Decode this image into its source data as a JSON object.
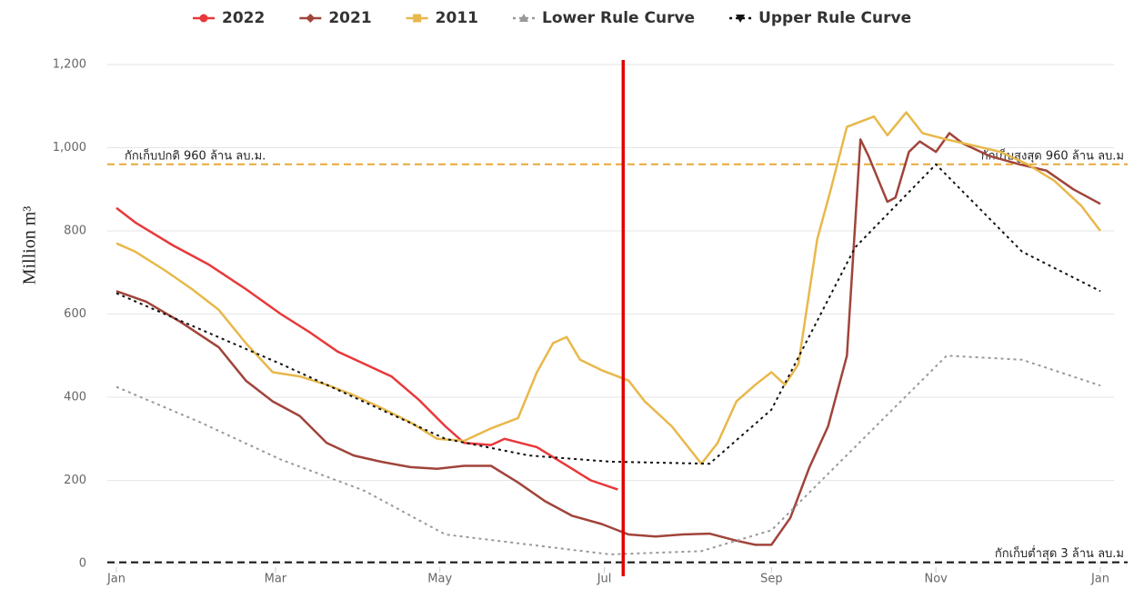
{
  "chart_data": {
    "type": "line",
    "y_label": "Million m³",
    "xlim": [
      0,
      365
    ],
    "xticks": [
      {
        "value": 0,
        "label": "Jan"
      },
      {
        "value": 59,
        "label": "Mar"
      },
      {
        "value": 120,
        "label": "May"
      },
      {
        "value": 181,
        "label": "Jul"
      },
      {
        "value": 243,
        "label": "Sep"
      },
      {
        "value": 304,
        "label": "Nov"
      },
      {
        "value": 365,
        "label": "Jan"
      }
    ],
    "ylim": [
      0,
      1200
    ],
    "yticks": [
      0,
      200,
      400,
      600,
      800,
      {
        "value": 1000,
        "label": "1,000"
      },
      {
        "value": 1200,
        "label": "1,200"
      }
    ],
    "grid": true,
    "legend": "top",
    "series": [
      {
        "name": "2022",
        "color": "#e8383a",
        "dash": "solid",
        "marker": "circle",
        "x": [
          0,
          7,
          21,
          34,
          48,
          61,
          72,
          82,
          92,
          102,
          112,
          122,
          129,
          139,
          144,
          156,
          166,
          176,
          186
        ],
        "values": [
          855,
          820,
          765,
          720,
          660,
          600,
          555,
          510,
          480,
          450,
          395,
          330,
          290,
          285,
          300,
          280,
          240,
          200,
          178
        ]
      },
      {
        "name": "2021",
        "color": "#a0443a",
        "dash": "solid",
        "marker": "diamond",
        "x": [
          0,
          11,
          24,
          38,
          48,
          58,
          68,
          78,
          88,
          98,
          109,
          119,
          129,
          139,
          149,
          159,
          169,
          180,
          190,
          200,
          210,
          220,
          230,
          237,
          243,
          250,
          257,
          264,
          271,
          276,
          279,
          286,
          289,
          294,
          298,
          304,
          309,
          314,
          324,
          335,
          345,
          355,
          365
        ],
        "values": [
          655,
          630,
          580,
          520,
          440,
          390,
          355,
          290,
          260,
          245,
          232,
          228,
          235,
          235,
          195,
          150,
          115,
          95,
          70,
          65,
          70,
          72,
          55,
          45,
          45,
          110,
          230,
          330,
          500,
          1020,
          980,
          870,
          880,
          990,
          1015,
          990,
          1035,
          1010,
          980,
          960,
          945,
          900,
          865
        ]
      },
      {
        "name": "2011",
        "color": "#e8b84a",
        "dash": "solid",
        "marker": "square",
        "x": [
          0,
          7,
          18,
          28,
          38,
          48,
          58,
          68,
          78,
          88,
          98,
          109,
          119,
          129,
          139,
          149,
          156,
          162,
          167,
          172,
          180,
          190,
          196,
          206,
          217,
          223,
          230,
          237,
          243,
          248,
          253,
          260,
          265,
          271,
          281,
          286,
          293,
          299,
          308,
          318,
          328,
          338,
          348,
          358,
          365
        ],
        "values": [
          770,
          750,
          705,
          660,
          610,
          530,
          460,
          450,
          430,
          405,
          375,
          340,
          300,
          295,
          325,
          350,
          460,
          530,
          545,
          490,
          465,
          440,
          390,
          330,
          240,
          290,
          390,
          430,
          460,
          430,
          480,
          780,
          900,
          1050,
          1075,
          1030,
          1085,
          1035,
          1020,
          1005,
          990,
          960,
          920,
          860,
          800
        ]
      },
      {
        "name": "Lower Rule Curve",
        "color": "#999999",
        "dash": "dotted",
        "marker": "triangle",
        "x": [
          0,
          31,
          61,
          92,
          122,
          183,
          217,
          243,
          308,
          336,
          365
        ],
        "values": [
          425,
          340,
          250,
          175,
          70,
          22,
          30,
          80,
          500,
          490,
          428
        ]
      },
      {
        "name": "Upper Rule Curve",
        "color": "#111111",
        "dash": "dotted",
        "marker": "triangle-down",
        "x": [
          0,
          61,
          122,
          153,
          183,
          220,
          243,
          274,
          304,
          336,
          365
        ],
        "values": [
          650,
          480,
          300,
          260,
          245,
          240,
          370,
          760,
          960,
          750,
          655
        ]
      }
    ],
    "hlines": [
      {
        "y": 960,
        "color": "#e8a838",
        "labels": [
          "กักเก็บปกติ 960 ล้าน ลบ.ม.",
          "กักเก็บสูงสุด 960 ล้าน ลบ.ม"
        ]
      },
      {
        "y": 3,
        "color": "#111111",
        "labels": [
          "กักเก็บต่ำสุด 3 ล้าน ลบ.ม"
        ]
      }
    ],
    "vlines": [
      {
        "x": 188,
        "color": "#e00000"
      }
    ]
  }
}
